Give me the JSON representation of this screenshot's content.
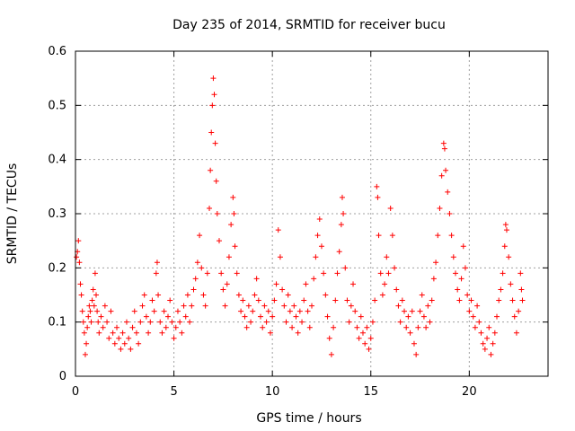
{
  "chart_data": {
    "type": "scatter",
    "title": "Day 235 of 2014, SRMTID for receiver bucu",
    "xlabel": "GPS time / hours",
    "ylabel": "SRMTID / TECUs",
    "xlim": [
      0,
      24
    ],
    "ylim": [
      0,
      0.6
    ],
    "xticks": [
      0,
      5,
      10,
      15,
      20
    ],
    "yticks": [
      0,
      0.1,
      0.2,
      0.3,
      0.4,
      0.5,
      0.6
    ],
    "xtick_labels": [
      "0",
      "5",
      "10",
      "15",
      "20"
    ],
    "ytick_labels": [
      "0",
      "0.1",
      "0.2",
      "0.3",
      "0.4",
      "0.5",
      "0.6"
    ],
    "grid": true,
    "marker": "+",
    "color": "#ff0000",
    "series": [
      {
        "name": "SRMTID",
        "points": [
          [
            0.05,
            0.22
          ],
          [
            0.1,
            0.23
          ],
          [
            0.15,
            0.25
          ],
          [
            0.2,
            0.21
          ],
          [
            0.25,
            0.17
          ],
          [
            0.3,
            0.15
          ],
          [
            0.35,
            0.12
          ],
          [
            0.4,
            0.1
          ],
          [
            0.45,
            0.08
          ],
          [
            0.5,
            0.04
          ],
          [
            0.55,
            0.06
          ],
          [
            0.6,
            0.09
          ],
          [
            0.65,
            0.11
          ],
          [
            0.7,
            0.13
          ],
          [
            0.75,
            0.12
          ],
          [
            0.8,
            0.1
          ],
          [
            0.85,
            0.14
          ],
          [
            0.9,
            0.16
          ],
          [
            0.95,
            0.13
          ],
          [
            1.0,
            0.19
          ],
          [
            1.05,
            0.15
          ],
          [
            1.1,
            0.12
          ],
          [
            1.15,
            0.1
          ],
          [
            1.2,
            0.08
          ],
          [
            1.3,
            0.11
          ],
          [
            1.4,
            0.09
          ],
          [
            1.5,
            0.13
          ],
          [
            1.6,
            0.1
          ],
          [
            1.7,
            0.07
          ],
          [
            1.8,
            0.12
          ],
          [
            1.9,
            0.08
          ],
          [
            2.0,
            0.06
          ],
          [
            2.1,
            0.09
          ],
          [
            2.2,
            0.07
          ],
          [
            2.3,
            0.05
          ],
          [
            2.4,
            0.08
          ],
          [
            2.5,
            0.06
          ],
          [
            2.6,
            0.1
          ],
          [
            2.7,
            0.07
          ],
          [
            2.8,
            0.05
          ],
          [
            2.9,
            0.09
          ],
          [
            3.0,
            0.12
          ],
          [
            3.1,
            0.08
          ],
          [
            3.2,
            0.06
          ],
          [
            3.3,
            0.1
          ],
          [
            3.4,
            0.13
          ],
          [
            3.5,
            0.15
          ],
          [
            3.6,
            0.11
          ],
          [
            3.7,
            0.08
          ],
          [
            3.8,
            0.1
          ],
          [
            3.9,
            0.14
          ],
          [
            4.0,
            0.12
          ],
          [
            4.1,
            0.19
          ],
          [
            4.15,
            0.21
          ],
          [
            4.2,
            0.15
          ],
          [
            4.3,
            0.1
          ],
          [
            4.4,
            0.08
          ],
          [
            4.5,
            0.12
          ],
          [
            4.6,
            0.09
          ],
          [
            4.7,
            0.11
          ],
          [
            4.8,
            0.14
          ],
          [
            4.9,
            0.1
          ],
          [
            5.0,
            0.07
          ],
          [
            5.1,
            0.09
          ],
          [
            5.2,
            0.12
          ],
          [
            5.3,
            0.1
          ],
          [
            5.4,
            0.08
          ],
          [
            5.5,
            0.13
          ],
          [
            5.6,
            0.11
          ],
          [
            5.7,
            0.15
          ],
          [
            5.8,
            0.1
          ],
          [
            5.9,
            0.13
          ],
          [
            6.0,
            0.16
          ],
          [
            6.1,
            0.18
          ],
          [
            6.2,
            0.21
          ],
          [
            6.3,
            0.26
          ],
          [
            6.4,
            0.2
          ],
          [
            6.5,
            0.15
          ],
          [
            6.6,
            0.13
          ],
          [
            6.7,
            0.19
          ],
          [
            6.8,
            0.31
          ],
          [
            6.85,
            0.38
          ],
          [
            6.9,
            0.45
          ],
          [
            6.95,
            0.5
          ],
          [
            7.0,
            0.55
          ],
          [
            7.05,
            0.52
          ],
          [
            7.1,
            0.43
          ],
          [
            7.15,
            0.36
          ],
          [
            7.2,
            0.3
          ],
          [
            7.3,
            0.25
          ],
          [
            7.4,
            0.19
          ],
          [
            7.5,
            0.16
          ],
          [
            7.6,
            0.13
          ],
          [
            7.7,
            0.17
          ],
          [
            7.8,
            0.22
          ],
          [
            7.9,
            0.28
          ],
          [
            8.0,
            0.33
          ],
          [
            8.05,
            0.3
          ],
          [
            8.1,
            0.24
          ],
          [
            8.2,
            0.19
          ],
          [
            8.3,
            0.15
          ],
          [
            8.4,
            0.12
          ],
          [
            8.5,
            0.14
          ],
          [
            8.6,
            0.11
          ],
          [
            8.7,
            0.09
          ],
          [
            8.8,
            0.13
          ],
          [
            8.9,
            0.1
          ],
          [
            9.0,
            0.12
          ],
          [
            9.1,
            0.15
          ],
          [
            9.2,
            0.18
          ],
          [
            9.3,
            0.14
          ],
          [
            9.4,
            0.11
          ],
          [
            9.5,
            0.09
          ],
          [
            9.6,
            0.13
          ],
          [
            9.7,
            0.1
          ],
          [
            9.8,
            0.12
          ],
          [
            9.9,
            0.08
          ],
          [
            10.0,
            0.11
          ],
          [
            10.1,
            0.14
          ],
          [
            10.2,
            0.17
          ],
          [
            10.3,
            0.27
          ],
          [
            10.4,
            0.22
          ],
          [
            10.5,
            0.16
          ],
          [
            10.6,
            0.13
          ],
          [
            10.7,
            0.1
          ],
          [
            10.8,
            0.15
          ],
          [
            10.9,
            0.12
          ],
          [
            11.0,
            0.09
          ],
          [
            11.1,
            0.13
          ],
          [
            11.2,
            0.11
          ],
          [
            11.3,
            0.08
          ],
          [
            11.4,
            0.12
          ],
          [
            11.5,
            0.1
          ],
          [
            11.6,
            0.14
          ],
          [
            11.7,
            0.17
          ],
          [
            11.8,
            0.12
          ],
          [
            11.9,
            0.09
          ],
          [
            12.0,
            0.13
          ],
          [
            12.1,
            0.18
          ],
          [
            12.2,
            0.22
          ],
          [
            12.3,
            0.26
          ],
          [
            12.4,
            0.29
          ],
          [
            12.5,
            0.24
          ],
          [
            12.6,
            0.19
          ],
          [
            12.7,
            0.15
          ],
          [
            12.8,
            0.11
          ],
          [
            12.9,
            0.07
          ],
          [
            13.0,
            0.04
          ],
          [
            13.1,
            0.09
          ],
          [
            13.2,
            0.14
          ],
          [
            13.3,
            0.19
          ],
          [
            13.4,
            0.23
          ],
          [
            13.5,
            0.28
          ],
          [
            13.55,
            0.33
          ],
          [
            13.6,
            0.3
          ],
          [
            13.7,
            0.2
          ],
          [
            13.8,
            0.14
          ],
          [
            13.9,
            0.1
          ],
          [
            14.0,
            0.13
          ],
          [
            14.1,
            0.17
          ],
          [
            14.2,
            0.12
          ],
          [
            14.3,
            0.09
          ],
          [
            14.4,
            0.07
          ],
          [
            14.5,
            0.11
          ],
          [
            14.6,
            0.08
          ],
          [
            14.7,
            0.06
          ],
          [
            14.8,
            0.09
          ],
          [
            14.9,
            0.05
          ],
          [
            15.0,
            0.07
          ],
          [
            15.1,
            0.1
          ],
          [
            15.2,
            0.14
          ],
          [
            15.3,
            0.35
          ],
          [
            15.35,
            0.33
          ],
          [
            15.4,
            0.26
          ],
          [
            15.5,
            0.19
          ],
          [
            15.6,
            0.15
          ],
          [
            15.7,
            0.17
          ],
          [
            15.8,
            0.22
          ],
          [
            15.9,
            0.19
          ],
          [
            16.0,
            0.31
          ],
          [
            16.1,
            0.26
          ],
          [
            16.2,
            0.2
          ],
          [
            16.3,
            0.16
          ],
          [
            16.4,
            0.13
          ],
          [
            16.5,
            0.1
          ],
          [
            16.6,
            0.14
          ],
          [
            16.7,
            0.12
          ],
          [
            16.8,
            0.09
          ],
          [
            16.9,
            0.11
          ],
          [
            17.0,
            0.08
          ],
          [
            17.1,
            0.12
          ],
          [
            17.2,
            0.06
          ],
          [
            17.3,
            0.04
          ],
          [
            17.4,
            0.09
          ],
          [
            17.5,
            0.12
          ],
          [
            17.6,
            0.15
          ],
          [
            17.7,
            0.11
          ],
          [
            17.8,
            0.09
          ],
          [
            17.9,
            0.13
          ],
          [
            18.0,
            0.1
          ],
          [
            18.1,
            0.14
          ],
          [
            18.2,
            0.18
          ],
          [
            18.3,
            0.21
          ],
          [
            18.4,
            0.26
          ],
          [
            18.5,
            0.31
          ],
          [
            18.6,
            0.37
          ],
          [
            18.7,
            0.43
          ],
          [
            18.75,
            0.42
          ],
          [
            18.8,
            0.38
          ],
          [
            18.9,
            0.34
          ],
          [
            19.0,
            0.3
          ],
          [
            19.1,
            0.26
          ],
          [
            19.2,
            0.22
          ],
          [
            19.3,
            0.19
          ],
          [
            19.4,
            0.16
          ],
          [
            19.5,
            0.14
          ],
          [
            19.6,
            0.18
          ],
          [
            19.7,
            0.24
          ],
          [
            19.8,
            0.2
          ],
          [
            19.9,
            0.15
          ],
          [
            20.0,
            0.12
          ],
          [
            20.1,
            0.14
          ],
          [
            20.2,
            0.11
          ],
          [
            20.3,
            0.09
          ],
          [
            20.4,
            0.13
          ],
          [
            20.5,
            0.1
          ],
          [
            20.6,
            0.08
          ],
          [
            20.7,
            0.06
          ],
          [
            20.8,
            0.05
          ],
          [
            20.9,
            0.07
          ],
          [
            21.0,
            0.09
          ],
          [
            21.1,
            0.04
          ],
          [
            21.2,
            0.06
          ],
          [
            21.3,
            0.08
          ],
          [
            21.4,
            0.11
          ],
          [
            21.5,
            0.14
          ],
          [
            21.6,
            0.16
          ],
          [
            21.7,
            0.19
          ],
          [
            21.8,
            0.24
          ],
          [
            21.85,
            0.28
          ],
          [
            21.9,
            0.27
          ],
          [
            22.0,
            0.22
          ],
          [
            22.1,
            0.17
          ],
          [
            22.2,
            0.14
          ],
          [
            22.3,
            0.11
          ],
          [
            22.4,
            0.08
          ],
          [
            22.5,
            0.12
          ],
          [
            22.6,
            0.19
          ],
          [
            22.65,
            0.16
          ],
          [
            22.7,
            0.14
          ]
        ]
      }
    ]
  }
}
